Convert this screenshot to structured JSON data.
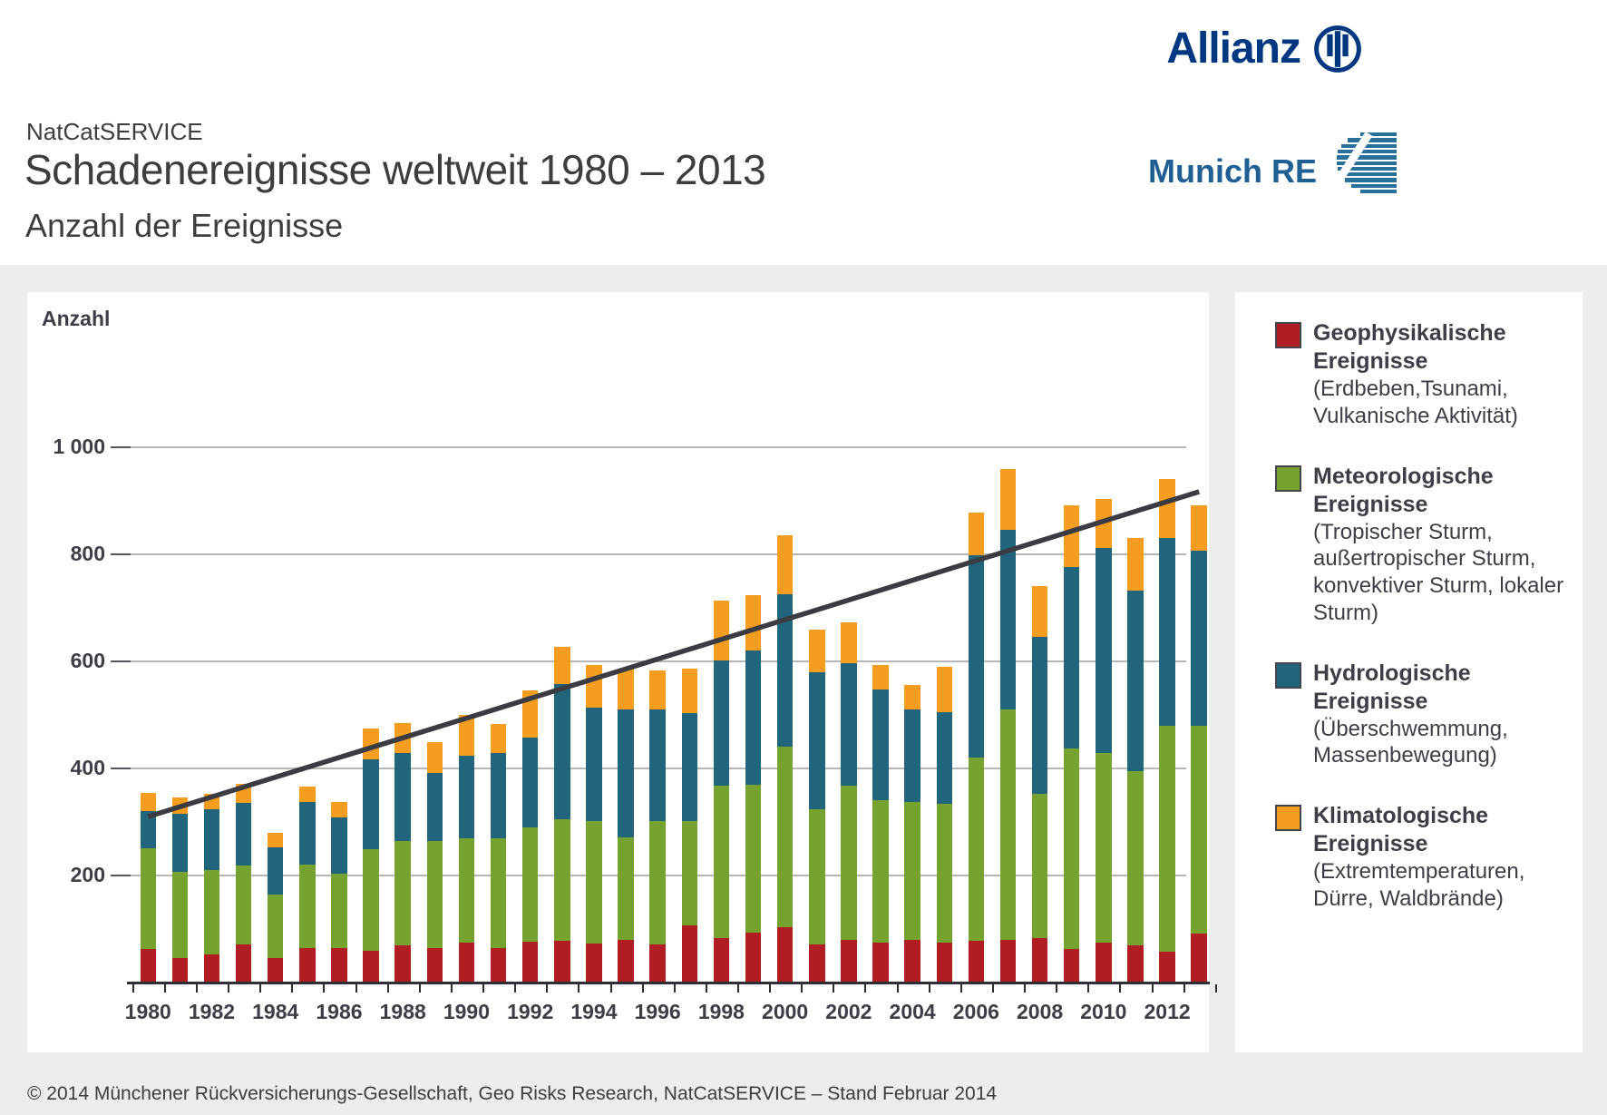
{
  "header": {
    "service": "NatCatSERVICE",
    "title": "Schadenereignisse weltweit 1980 – 2013",
    "subtitle": "Anzahl der Ereignisse",
    "allianz_brand": "Allianz",
    "munichre_brand": "Munich RE",
    "allianz_color": "#003781",
    "munichre_color": "#1f5f94"
  },
  "chart_data": {
    "type": "bar",
    "stacked": true,
    "axis_title": "Anzahl",
    "grid": "horizontal",
    "legend_position": "right-panel",
    "ylim": [
      0,
      1060
    ],
    "yticks": [
      {
        "value": 200,
        "label": "200"
      },
      {
        "value": 400,
        "label": "400"
      },
      {
        "value": 600,
        "label": "600"
      },
      {
        "value": 800,
        "label": "800"
      },
      {
        "value": 1000,
        "label": "1 000"
      }
    ],
    "categories": [
      1980,
      1981,
      1982,
      1983,
      1984,
      1985,
      1986,
      1987,
      1988,
      1989,
      1990,
      1991,
      1992,
      1993,
      1994,
      1995,
      1996,
      1997,
      1998,
      1999,
      2000,
      2001,
      2002,
      2003,
      2004,
      2005,
      2006,
      2007,
      2008,
      2009,
      2010,
      2011,
      2012,
      2013
    ],
    "xtick_labels": [
      "1980",
      "1982",
      "1984",
      "1986",
      "1988",
      "1990",
      "1992",
      "1994",
      "1996",
      "1998",
      "2000",
      "2002",
      "2004",
      "2006",
      "2008",
      "2010",
      "2012"
    ],
    "series": [
      {
        "name": "Geophysikalische Ereignisse",
        "color": "#b01e24",
        "values": [
          62,
          46,
          53,
          72,
          46,
          64,
          64,
          59,
          69,
          64,
          75,
          64,
          76,
          78,
          73,
          80,
          71,
          107,
          83,
          93,
          104,
          72,
          80,
          74,
          80,
          75,
          78,
          80,
          83,
          63,
          74,
          69,
          57,
          91
        ]
      },
      {
        "name": "Meteorologische Ereignisse",
        "color": "#76a22f",
        "values": [
          189,
          160,
          157,
          146,
          119,
          156,
          140,
          190,
          195,
          200,
          194,
          206,
          214,
          227,
          228,
          192,
          230,
          195,
          284,
          276,
          337,
          252,
          287,
          266,
          257,
          259,
          343,
          430,
          269,
          374,
          355,
          326,
          422,
          388
        ]
      },
      {
        "name": "Hydrologische Ereignisse",
        "color": "#20657b",
        "values": [
          70,
          110,
          114,
          118,
          88,
          118,
          105,
          168,
          165,
          128,
          155,
          159,
          168,
          253,
          213,
          239,
          210,
          201,
          234,
          252,
          284,
          256,
          229,
          207,
          173,
          171,
          378,
          335,
          293,
          340,
          383,
          338,
          351,
          327
        ]
      },
      {
        "name": "Klimatologische Ereignisse",
        "color": "#f49d1e",
        "values": [
          34,
          30,
          28,
          35,
          27,
          28,
          29,
          57,
          56,
          58,
          76,
          54,
          87,
          69,
          80,
          75,
          72,
          83,
          113,
          103,
          111,
          80,
          77,
          47,
          46,
          85,
          79,
          115,
          96,
          114,
          91,
          97,
          110,
          85
        ]
      }
    ],
    "totals": [
      355,
      346,
      352,
      371,
      280,
      366,
      338,
      474,
      485,
      450,
      500,
      483,
      545,
      627,
      594,
      586,
      583,
      586,
      714,
      724,
      836,
      660,
      673,
      594,
      556,
      590,
      878,
      960,
      741,
      891,
      903,
      830,
      940,
      891
    ],
    "trend_line": {
      "start_year": 1980,
      "start_value": 310,
      "end_year": 2013,
      "end_value": 917,
      "color": "#3b3b42"
    }
  },
  "legend": {
    "items": [
      {
        "color": "#b01e24",
        "title_lines": [
          "Geophysikalische",
          "Ereignisse"
        ],
        "desc": "(Erdbeben,Tsunami, Vulkanische Aktivität)"
      },
      {
        "color": "#76a22f",
        "title_lines": [
          "Meteorologische",
          "Ereignisse"
        ],
        "desc": "(Tropischer Sturm, außertropischer Sturm, konvektiver Sturm, lokaler Sturm)"
      },
      {
        "color": "#20657b",
        "title_lines": [
          "Hydrologische",
          "Ereignisse"
        ],
        "desc": "(Überschwemmung, Massenbewegung)"
      },
      {
        "color": "#f49d1e",
        "title_lines": [
          "Klimatologische",
          "Ereignisse"
        ],
        "desc": "(Extremtemperaturen, Dürre, Waldbrände)"
      }
    ]
  },
  "footer": {
    "copyright": "© 2014 Münchener Rückversicherungs-Gesellschaft, Geo Risks Research, NatCatSERVICE – Stand Februar 2014"
  }
}
